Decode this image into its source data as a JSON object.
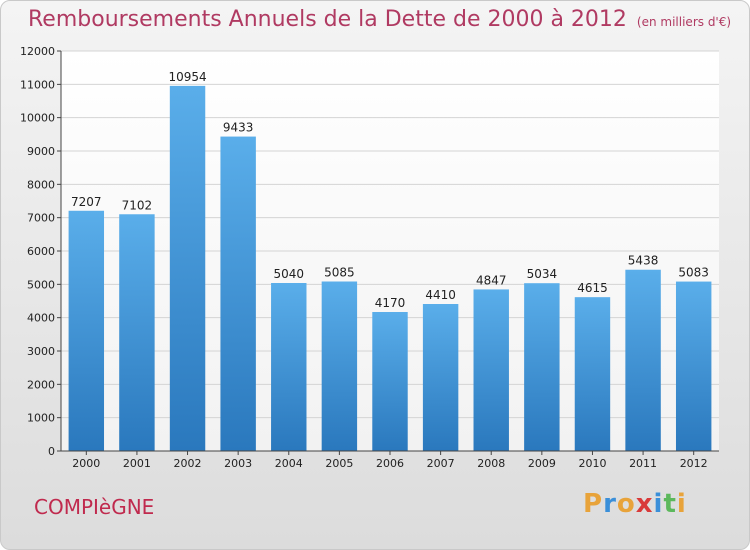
{
  "chart_title": "Remboursements Annuels de la Dette de 2000 à 2012",
  "chart_subtitle": "(en milliers d'€)",
  "city": "COMPIèGNE",
  "logo": {
    "letters": [
      "P",
      "r",
      "o",
      "x",
      "i",
      "t",
      "i"
    ],
    "colors": [
      "#e8a33a",
      "#3a8fd9",
      "#e8a33a",
      "#d93a3a",
      "#3a8fd9",
      "#5cb85c",
      "#e8a33a"
    ]
  },
  "chart_data": {
    "type": "bar",
    "title": "Remboursements Annuels de la Dette de 2000 à 2012",
    "subtitle": "(en milliers d'€)",
    "categories": [
      "2000",
      "2001",
      "2002",
      "2003",
      "2004",
      "2005",
      "2006",
      "2007",
      "2008",
      "2009",
      "2010",
      "2011",
      "2012"
    ],
    "values": [
      7207,
      7102,
      10954,
      9433,
      5040,
      5085,
      4170,
      4410,
      4847,
      5034,
      4615,
      5438,
      5083
    ],
    "xlabel": "",
    "ylabel": "",
    "ylim": [
      0,
      12000
    ],
    "yticks": [
      0,
      1000,
      2000,
      3000,
      4000,
      5000,
      6000,
      7000,
      8000,
      9000,
      10000,
      11000,
      12000
    ],
    "grid": true,
    "bar_color": "#3a8fd9"
  }
}
